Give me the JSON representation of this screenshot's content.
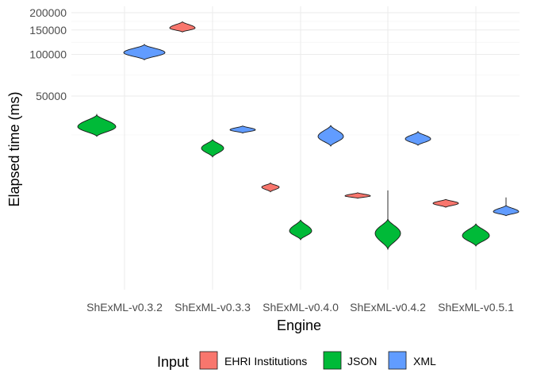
{
  "chart_data": {
    "type": "violin",
    "title": "",
    "xlabel": "Engine",
    "ylabel": "Elapsed time (ms)",
    "y_scale": "log",
    "y_ticks": [
      50000,
      100000,
      150000,
      200000
    ],
    "y_tick_labels": [
      "50000",
      "100000",
      "150000",
      "200000"
    ],
    "grid": true,
    "categories": [
      "ShExML-v0.3.2",
      "ShExML-v0.3.3",
      "ShExML-v0.4.0",
      "ShExML-v0.4.2",
      "ShExML-v0.5.1"
    ],
    "legend": {
      "title": "Input",
      "position": "bottom"
    },
    "series": [
      {
        "name": "EHRI Institutions",
        "color": "#F8766D",
        "values": [
          null,
          155000,
          11000,
          9500,
          8400
        ]
      },
      {
        "name": "JSON",
        "color": "#00BA38",
        "values": [
          30000,
          21000,
          5300,
          5100,
          4900
        ]
      },
      {
        "name": "XML",
        "color": "#619CFF",
        "values": [
          103000,
          28500,
          25500,
          24500,
          7300
        ]
      }
    ]
  }
}
